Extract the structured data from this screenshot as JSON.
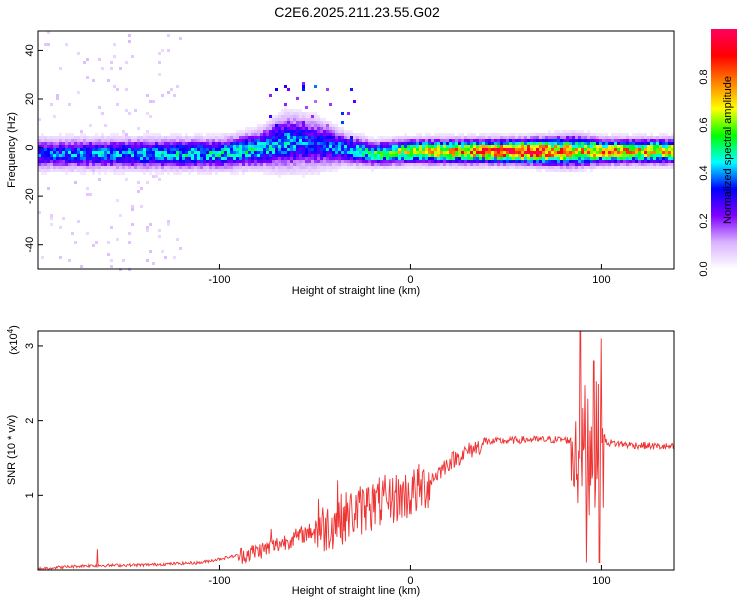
{
  "title": "C2E6.2025.211.23.55.G02",
  "chart_data": [
    {
      "type": "heatmap",
      "xlabel": "Height of straight line (km)",
      "ylabel": "Frequency (Hz)",
      "xlim": [
        -195,
        138
      ],
      "ylim": [
        -50,
        48
      ],
      "x_ticks": [
        -100,
        0,
        100
      ],
      "y_ticks": [
        -40,
        -20,
        0,
        20,
        40
      ],
      "colorbar": {
        "label": "Normalized spectral amplitude",
        "range": [
          0,
          1
        ],
        "ticks": [
          "0.0",
          "0.2",
          "0.4",
          "0.6",
          "0.8"
        ],
        "tick_values": [
          0,
          0.2,
          0.4,
          0.6,
          0.8
        ],
        "colors": [
          "#ffffff",
          "#d9b3ff",
          "#8000ff",
          "#0000ff",
          "#00ffff",
          "#00ff00",
          "#ffff00",
          "#ff8000",
          "#ff0000",
          "#ff0060"
        ]
      },
      "ridge": [
        {
          "x": -195,
          "center": -2,
          "width": 5,
          "amp": 0.35
        },
        {
          "x": -150,
          "center": -2,
          "width": 5,
          "amp": 0.4
        },
        {
          "x": -100,
          "center": -2,
          "width": 5,
          "amp": 0.45
        },
        {
          "x": -80,
          "center": 0,
          "width": 6,
          "amp": 0.45
        },
        {
          "x": -65,
          "center": 3,
          "width": 9,
          "amp": 0.4
        },
        {
          "x": -50,
          "center": 2,
          "width": 8,
          "amp": 0.35
        },
        {
          "x": -35,
          "center": 0,
          "width": 5,
          "amp": 0.4
        },
        {
          "x": -20,
          "center": -2,
          "width": 4,
          "amp": 0.5
        },
        {
          "x": 0,
          "center": -1,
          "width": 4,
          "amp": 0.65
        },
        {
          "x": 30,
          "center": -1,
          "width": 4,
          "amp": 0.75
        },
        {
          "x": 60,
          "center": -1,
          "width": 4,
          "amp": 0.95
        },
        {
          "x": 85,
          "center": -1,
          "width": 5,
          "amp": 0.7
        },
        {
          "x": 100,
          "center": -1,
          "width": 4,
          "amp": 0.75
        },
        {
          "x": 138,
          "center": -1,
          "width": 4,
          "amp": 0.7
        }
      ]
    },
    {
      "type": "line",
      "xlabel": "Height of straight line (km)",
      "ylabel": "SNR (10 * v/v)",
      "y_multiplier": "(x10",
      "y_multiplier_exp": "4",
      "y_multiplier_close": ")",
      "xlim": [
        -195,
        138
      ],
      "ylim": [
        0,
        3.2
      ],
      "x_ticks": [
        -100,
        0,
        100
      ],
      "y_ticks": [
        1,
        2,
        3
      ],
      "color": "#ee3333",
      "envelope": [
        {
          "x": -195,
          "y": 0.02
        },
        {
          "x": -170,
          "y": 0.06
        },
        {
          "x": -140,
          "y": 0.07
        },
        {
          "x": -110,
          "y": 0.1
        },
        {
          "x": -90,
          "y": 0.2
        },
        {
          "x": -75,
          "y": 0.3
        },
        {
          "x": -60,
          "y": 0.45
        },
        {
          "x": -45,
          "y": 0.6
        },
        {
          "x": -30,
          "y": 0.8
        },
        {
          "x": -15,
          "y": 0.95
        },
        {
          "x": 0,
          "y": 1.05
        },
        {
          "x": 10,
          "y": 1.2
        },
        {
          "x": 20,
          "y": 1.45
        },
        {
          "x": 30,
          "y": 1.6
        },
        {
          "x": 40,
          "y": 1.72
        },
        {
          "x": 60,
          "y": 1.75
        },
        {
          "x": 80,
          "y": 1.75
        },
        {
          "x": 90,
          "y": 1.72
        },
        {
          "x": 100,
          "y": 1.72
        },
        {
          "x": 115,
          "y": 1.68
        },
        {
          "x": 138,
          "y": 1.65
        }
      ],
      "spikes": [
        {
          "x": -164,
          "y": 0.28
        },
        {
          "x": -73,
          "y": 0.55
        },
        {
          "x": -48,
          "y": 0.95
        },
        {
          "x": -38,
          "y": 1.2
        },
        {
          "x": -22,
          "y": 1.1
        },
        {
          "x": -12,
          "y": 0.9
        },
        {
          "x": 89,
          "y": 3.2
        },
        {
          "x": 92,
          "y": 0.1
        },
        {
          "x": 96,
          "y": 2.8
        },
        {
          "x": 99,
          "y": 0.1
        },
        {
          "x": 100,
          "y": 3.1
        }
      ]
    }
  ]
}
